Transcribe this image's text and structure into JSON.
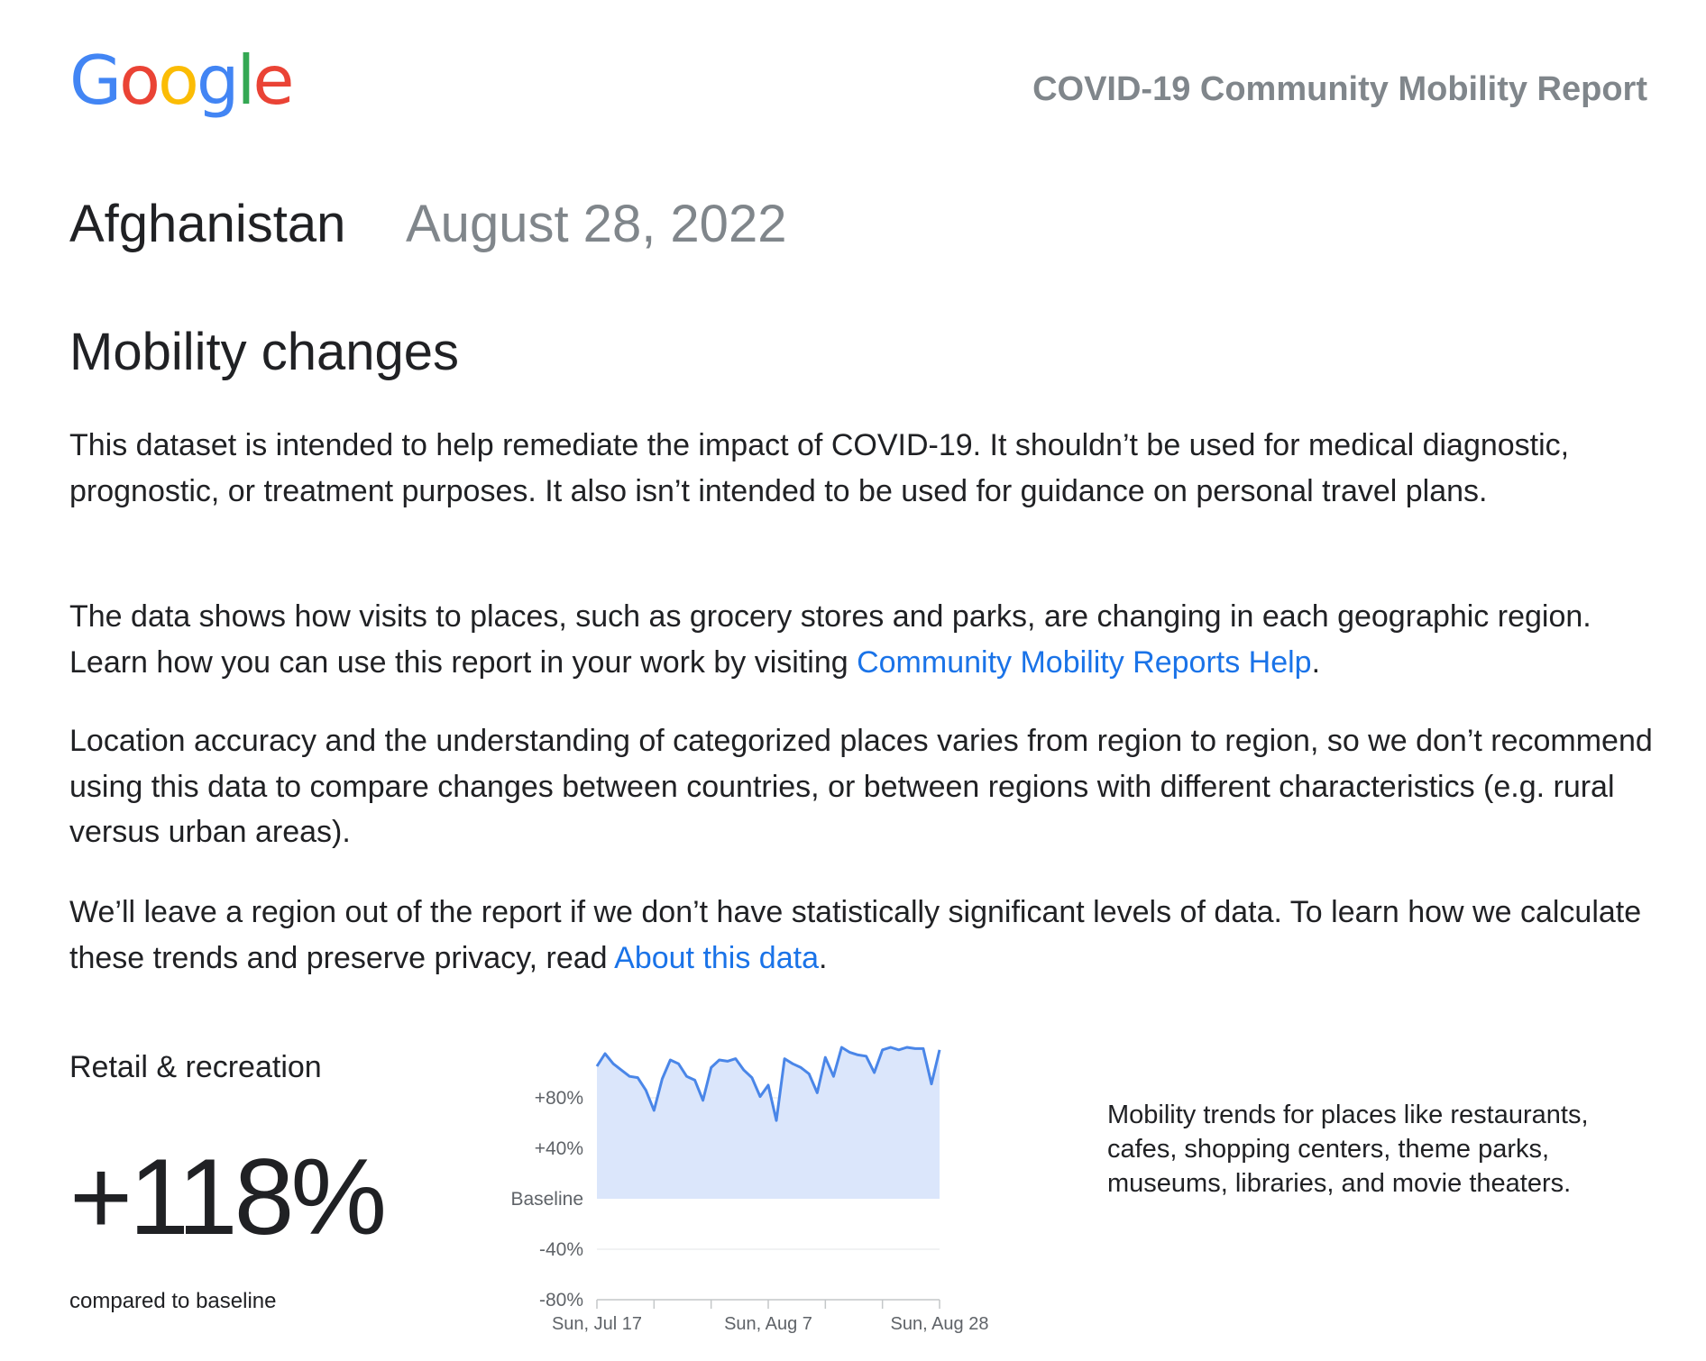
{
  "header": {
    "logo_letters": [
      {
        "ch": "G",
        "color": "#4285F4"
      },
      {
        "ch": "o",
        "color": "#EA4335"
      },
      {
        "ch": "o",
        "color": "#FBBC05"
      },
      {
        "ch": "g",
        "color": "#4285F4"
      },
      {
        "ch": "l",
        "color": "#34A853"
      },
      {
        "ch": "e",
        "color": "#EA4335"
      }
    ],
    "report_title": "COVID-19 Community Mobility Report"
  },
  "location": {
    "country": "Afghanistan",
    "date": "August 28, 2022"
  },
  "section": {
    "title": "Mobility changes"
  },
  "paragraphs": {
    "p1": "This dataset is intended to help remediate the impact of COVID-19. It shouldn’t be used for medical diagnostic, prognostic, or treatment purposes. It also isn’t intended to be used for guidance on personal travel plans.",
    "p2_before": "The data shows how visits to places, such as grocery stores and parks, are changing in each geographic region. Learn how you can use this report in your work by visiting ",
    "p2_link": "Community Mobility Reports Help",
    "p2_after": ".",
    "p3": "Location accuracy and the understanding of categorized places varies from region to region, so we don’t recommend using this data to compare changes between countries, or between regions with different characteristics (e.g. rural versus urban areas).",
    "p4_before": "We’ll leave a region out of the report if we don’t have statistically significant levels of data. To learn how we calculate these trends and preserve privacy, read ",
    "p4_link": "About this data",
    "p4_after": "."
  },
  "category": {
    "title": "Retail & recreation",
    "value": "+118%",
    "compared_label": "compared to baseline",
    "description": "Mobility trends for places like restaurants, cafes, shopping centers, theme parks, museums, libraries, and movie theaters."
  },
  "colors": {
    "line": "#4a86e8",
    "fill": "#dbe6fb",
    "link": "#1a73e8",
    "muted": "#80868b"
  },
  "chart_data": {
    "type": "area",
    "x_tick_labels": [
      "Sun, Jul 17",
      "Sun, Aug 7",
      "Sun, Aug 28"
    ],
    "y_tick_labels": [
      "+80%",
      "+40%",
      "Baseline",
      "-40%",
      "-80%"
    ],
    "y_ticks": [
      80,
      40,
      0,
      -40,
      -80
    ],
    "ylim": [
      -80,
      120
    ],
    "x_count": 43,
    "values": [
      105,
      115,
      107,
      102,
      97,
      96,
      86,
      70,
      95,
      110,
      107,
      97,
      94,
      78,
      104,
      110,
      109,
      111,
      102,
      96,
      81,
      90,
      62,
      111,
      107,
      104,
      99,
      84,
      112,
      97,
      120,
      116,
      114,
      113,
      100,
      118,
      120,
      118,
      120,
      119,
      119,
      91,
      118
    ]
  }
}
